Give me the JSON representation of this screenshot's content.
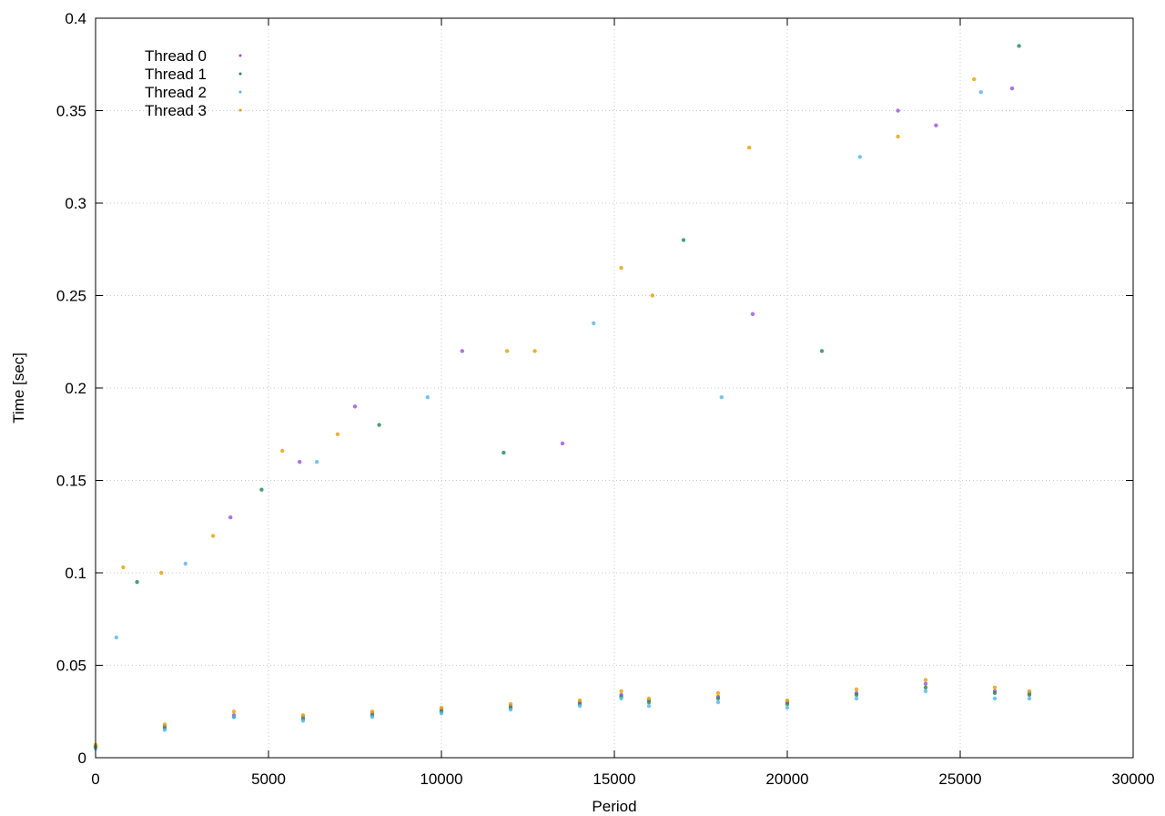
{
  "chart_data": {
    "type": "scatter",
    "title": "",
    "xlabel": "Period",
    "ylabel": "Time [sec]",
    "xlim": [
      0,
      30000
    ],
    "ylim": [
      0,
      0.4
    ],
    "xticks": [
      0,
      5000,
      10000,
      15000,
      20000,
      25000,
      30000
    ],
    "xtick_labels": [
      "0",
      "5000",
      "10000",
      "15000",
      "20000",
      "25000",
      "30000"
    ],
    "yticks": [
      0,
      0.05,
      0.1,
      0.15,
      0.2,
      0.25,
      0.3,
      0.35,
      0.4
    ],
    "ytick_labels": [
      "0",
      "0.05",
      "0.1",
      "0.15",
      "0.2",
      "0.25",
      "0.3",
      "0.35",
      "0.4"
    ],
    "grid": true,
    "legend_position": "top-left",
    "series": [
      {
        "name": "Thread 0",
        "color": "#9b4fd6",
        "x": [
          0,
          2000,
          4000,
          6000,
          8000,
          10000,
          12000,
          14000,
          15200,
          16000,
          18000,
          20000,
          22000,
          24000,
          26000,
          27000,
          3900,
          5900,
          7500,
          10600,
          13500,
          19000,
          23200,
          24300,
          26500
        ],
        "y": [
          0.006,
          0.017,
          0.023,
          0.022,
          0.024,
          0.026,
          0.028,
          0.03,
          0.034,
          0.031,
          0.033,
          0.03,
          0.035,
          0.04,
          0.036,
          0.035,
          0.13,
          0.16,
          0.19,
          0.22,
          0.17,
          0.24,
          0.35,
          0.342,
          0.362
        ]
      },
      {
        "name": "Thread 1",
        "color": "#1f8a50",
        "x": [
          0,
          2000,
          4000,
          6000,
          8000,
          10000,
          12000,
          14000,
          15200,
          16000,
          18000,
          20000,
          22000,
          24000,
          26000,
          27000,
          1200,
          4800,
          8200,
          11800,
          17000,
          21000,
          26700
        ],
        "y": [
          0.006,
          0.016,
          0.022,
          0.021,
          0.023,
          0.025,
          0.027,
          0.029,
          0.033,
          0.03,
          0.032,
          0.029,
          0.034,
          0.038,
          0.035,
          0.034,
          0.095,
          0.145,
          0.18,
          0.165,
          0.28,
          0.22,
          0.385
        ]
      },
      {
        "name": "Thread 2",
        "color": "#56b4e9",
        "x": [
          0,
          2000,
          4000,
          6000,
          8000,
          10000,
          12000,
          14000,
          15200,
          16000,
          18000,
          20000,
          22000,
          24000,
          26000,
          27000,
          600,
          2600,
          6400,
          9600,
          14400,
          18100,
          22100,
          25600
        ],
        "y": [
          0.005,
          0.015,
          0.022,
          0.02,
          0.022,
          0.024,
          0.026,
          0.028,
          0.032,
          0.028,
          0.03,
          0.027,
          0.032,
          0.036,
          0.032,
          0.032,
          0.065,
          0.105,
          0.16,
          0.195,
          0.235,
          0.195,
          0.325,
          0.36
        ]
      },
      {
        "name": "Thread 3",
        "color": "#e69f00",
        "x": [
          0,
          2000,
          4000,
          6000,
          8000,
          10000,
          12000,
          14000,
          15200,
          16000,
          18000,
          20000,
          22000,
          24000,
          26000,
          27000,
          800,
          1900,
          3400,
          5400,
          7000,
          11900,
          12700,
          15200,
          16100,
          18900,
          23200,
          25400
        ],
        "y": [
          0.007,
          0.018,
          0.025,
          0.023,
          0.025,
          0.027,
          0.029,
          0.031,
          0.036,
          0.032,
          0.035,
          0.031,
          0.037,
          0.042,
          0.038,
          0.036,
          0.103,
          0.1,
          0.12,
          0.166,
          0.175,
          0.22,
          0.22,
          0.265,
          0.25,
          0.33,
          0.336,
          0.367
        ]
      }
    ]
  }
}
